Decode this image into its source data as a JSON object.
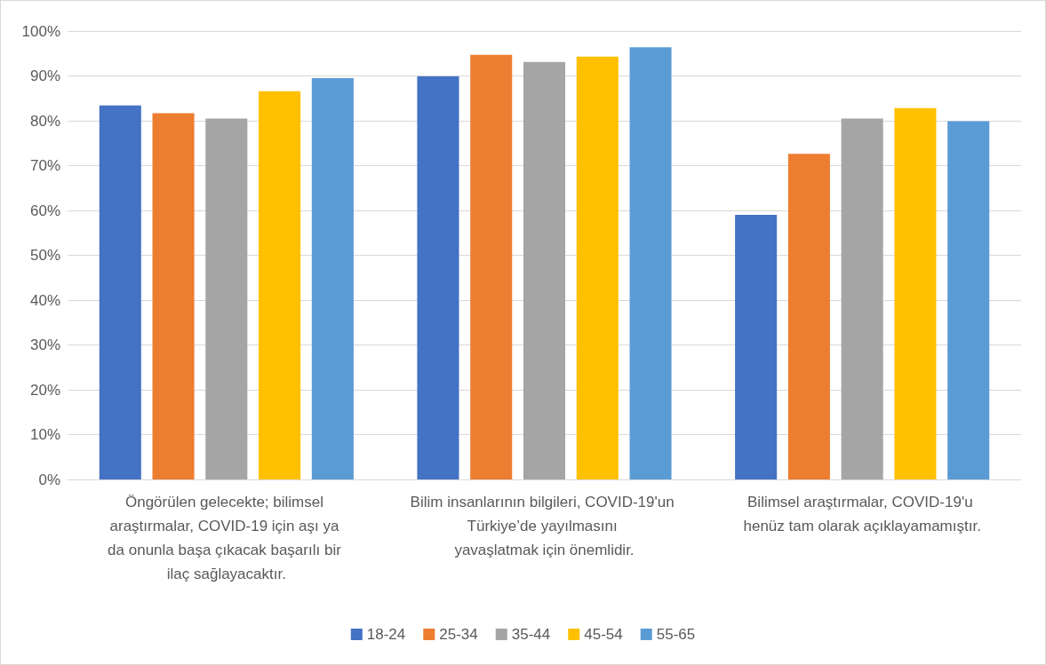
{
  "chart_data": {
    "type": "bar",
    "categories": [
      "Öngörülen gelecekte; bilimsel araştırmalar, COVID-19 için aşı ya da onunla başa çıkacak başarılı bir ilaç sağlayacaktır.",
      "Bilim insanlarının bilgileri, COVID-19'un Türkiye’de yayılmasını yavaşlatmak için önemlidir.",
      "Bilimsel araştırmalar, COVID-19'u henüz tam olarak açıklayamamıştır."
    ],
    "series": [
      {
        "name": "18-24",
        "color": "#4472c4",
        "values": [
          83.4,
          89.9,
          59.0
        ]
      },
      {
        "name": "25-34",
        "color": "#ed7d31",
        "values": [
          81.7,
          94.7,
          72.6
        ]
      },
      {
        "name": "35-44",
        "color": "#a5a5a5",
        "values": [
          80.5,
          93.1,
          80.5
        ]
      },
      {
        "name": "45-54",
        "color": "#ffc000",
        "values": [
          86.6,
          94.3,
          82.8
        ]
      },
      {
        "name": "55-65",
        "color": "#5b9bd5",
        "values": [
          89.5,
          96.4,
          79.9
        ]
      }
    ],
    "ylim": [
      0,
      100
    ],
    "yticks": [
      {
        "value": 0,
        "label": "0%"
      },
      {
        "value": 10,
        "label": "10%"
      },
      {
        "value": 20,
        "label": "20%"
      },
      {
        "value": 30,
        "label": "30%"
      },
      {
        "value": 40,
        "label": "40%"
      },
      {
        "value": 50,
        "label": "50%"
      },
      {
        "value": 60,
        "label": "60%"
      },
      {
        "value": 70,
        "label": "70%"
      },
      {
        "value": 80,
        "label": "80%"
      },
      {
        "value": 90,
        "label": "90%"
      },
      {
        "value": 100,
        "label": "100%"
      }
    ],
    "grid": true,
    "legend": "bottom"
  }
}
